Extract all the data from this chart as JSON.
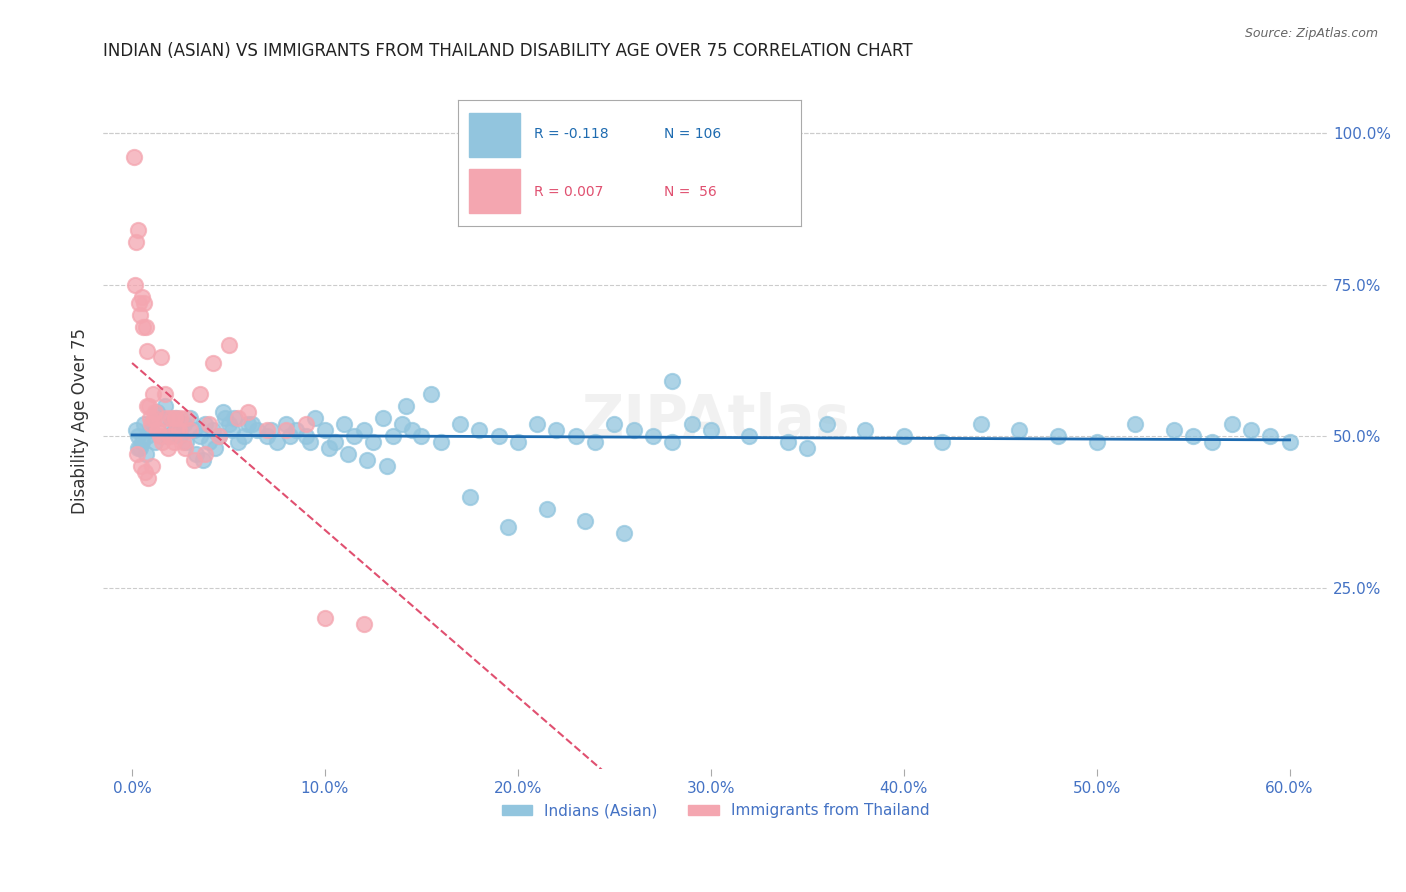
{
  "title": "INDIAN (ASIAN) VS IMMIGRANTS FROM THAILAND DISABILITY AGE OVER 75 CORRELATION CHART",
  "source": "Source: ZipAtlas.com",
  "ylabel": "Disability Age Over 75",
  "xlabel_ticks": [
    "0.0%",
    "10.0%",
    "20.0%",
    "30.0%",
    "40.0%",
    "50.0%",
    "60.0%"
  ],
  "xlabel_vals": [
    0.0,
    10.0,
    20.0,
    30.0,
    40.0,
    50.0,
    60.0
  ],
  "ylabel_ticks_right": [
    "100.0%",
    "75.0%",
    "50.0%",
    "25.0%"
  ],
  "ylabel_vals_right": [
    100.0,
    75.0,
    50.0,
    25.0
  ],
  "xlim": [
    -1.5,
    62
  ],
  "ylim": [
    -5,
    110
  ],
  "legend_blue_r": "R = -0.118",
  "legend_blue_n": "N = 106",
  "legend_pink_r": "R = 0.007",
  "legend_pink_n": "N =  56",
  "blue_color": "#92C5DE",
  "pink_color": "#F4A6B0",
  "blue_line_color": "#1E6BB0",
  "pink_line_color": "#E05070",
  "axis_label_color": "#4472C4",
  "title_color": "#222222",
  "grid_color": "#CCCCCC",
  "background_color": "#FFFFFF",
  "blue_scatter_x": [
    0.2,
    0.5,
    0.3,
    0.4,
    0.6,
    0.8,
    1.0,
    1.2,
    1.5,
    1.8,
    2.0,
    2.2,
    2.5,
    2.8,
    3.0,
    3.2,
    3.5,
    3.8,
    4.0,
    4.2,
    4.5,
    4.8,
    5.0,
    5.2,
    5.5,
    5.8,
    6.0,
    6.5,
    7.0,
    7.5,
    8.0,
    8.5,
    9.0,
    9.5,
    10.0,
    10.5,
    11.0,
    11.5,
    12.0,
    12.5,
    13.0,
    13.5,
    14.0,
    14.5,
    15.0,
    16.0,
    17.0,
    18.0,
    19.0,
    20.0,
    21.0,
    22.0,
    23.0,
    24.0,
    25.0,
    26.0,
    27.0,
    28.0,
    29.0,
    30.0,
    32.0,
    34.0,
    36.0,
    38.0,
    40.0,
    42.0,
    44.0,
    46.0,
    48.0,
    50.0,
    52.0,
    54.0,
    55.0,
    56.0,
    57.0,
    58.0,
    59.0,
    60.0,
    0.3,
    0.7,
    1.3,
    1.7,
    2.3,
    2.7,
    3.3,
    3.7,
    4.3,
    4.7,
    5.3,
    6.2,
    7.2,
    8.2,
    9.2,
    10.2,
    11.2,
    12.2,
    13.2,
    14.2,
    15.5,
    17.5,
    19.5,
    21.5,
    23.5,
    25.5,
    28.0,
    35.0
  ],
  "blue_scatter_y": [
    51,
    49,
    50,
    48,
    52,
    50,
    51,
    49,
    53,
    50,
    52,
    51,
    50,
    49,
    53,
    51,
    50,
    52,
    49,
    51,
    50,
    53,
    52,
    51,
    49,
    50,
    52,
    51,
    50,
    49,
    52,
    51,
    50,
    53,
    51,
    49,
    52,
    50,
    51,
    49,
    53,
    50,
    52,
    51,
    50,
    49,
    52,
    51,
    50,
    49,
    52,
    51,
    50,
    49,
    52,
    51,
    50,
    49,
    52,
    51,
    50,
    49,
    52,
    51,
    50,
    49,
    52,
    51,
    50,
    49,
    52,
    51,
    50,
    49,
    52,
    51,
    50,
    49,
    48,
    47,
    54,
    55,
    53,
    52,
    47,
    46,
    48,
    54,
    53,
    52,
    51,
    50,
    49,
    48,
    47,
    46,
    45,
    55,
    57,
    40,
    35,
    38,
    36,
    34,
    59,
    48
  ],
  "pink_scatter_x": [
    0.1,
    0.2,
    0.3,
    0.4,
    0.5,
    0.6,
    0.7,
    0.8,
    0.9,
    1.0,
    1.1,
    1.2,
    1.3,
    1.5,
    1.7,
    2.0,
    2.3,
    2.5,
    2.8,
    3.0,
    3.5,
    4.0,
    4.5,
    5.0,
    6.0,
    7.0,
    8.0,
    9.0,
    10.0,
    12.0,
    0.15,
    0.35,
    0.55,
    0.75,
    0.95,
    1.15,
    1.35,
    1.55,
    1.75,
    1.95,
    2.15,
    2.45,
    2.75,
    3.2,
    3.8,
    4.2,
    5.5,
    0.25,
    0.45,
    0.65,
    0.85,
    1.05,
    1.45,
    1.85,
    2.25,
    2.65
  ],
  "pink_scatter_y": [
    96,
    82,
    84,
    70,
    73,
    72,
    68,
    55,
    55,
    52,
    57,
    54,
    51,
    63,
    57,
    53,
    51,
    53,
    53,
    51,
    57,
    52,
    50,
    65,
    54,
    51,
    51,
    52,
    20,
    19,
    75,
    72,
    68,
    64,
    53,
    53,
    51,
    49,
    53,
    50,
    49,
    51,
    48,
    46,
    47,
    62,
    53,
    47,
    45,
    44,
    43,
    45,
    50,
    48,
    53,
    49
  ]
}
